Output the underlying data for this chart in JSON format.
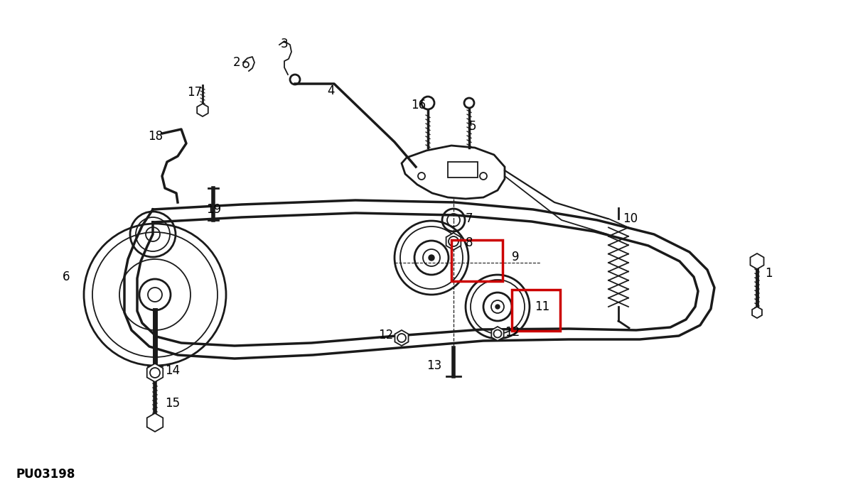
{
  "bg_color": "#ffffff",
  "line_color": "#1a1a1a",
  "label_color": "#000000",
  "red_box_color": "#cc0000",
  "figure_id": "PU03198",
  "lw_belt": 2.5,
  "lw_main": 2.0,
  "lw_thin": 1.3
}
